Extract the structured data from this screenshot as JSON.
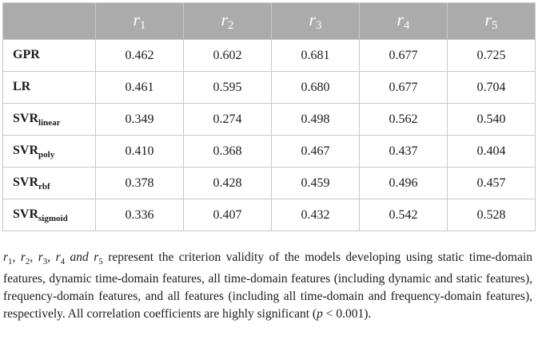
{
  "table": {
    "columns": [
      {
        "base": "r",
        "sub": "1"
      },
      {
        "base": "r",
        "sub": "2"
      },
      {
        "base": "r",
        "sub": "3"
      },
      {
        "base": "r",
        "sub": "4"
      },
      {
        "base": "r",
        "sub": "5"
      }
    ],
    "rows": [
      {
        "model": "GPR",
        "sub": "",
        "values": [
          "0.462",
          "0.602",
          "0.681",
          "0.677",
          "0.725"
        ]
      },
      {
        "model": "LR",
        "sub": "",
        "values": [
          "0.461",
          "0.595",
          "0.680",
          "0.677",
          "0.704"
        ]
      },
      {
        "model": "SVR",
        "sub": "linear",
        "values": [
          "0.349",
          "0.274",
          "0.498",
          "0.562",
          "0.540"
        ]
      },
      {
        "model": "SVR",
        "sub": "poly",
        "values": [
          "0.410",
          "0.368",
          "0.467",
          "0.437",
          "0.404"
        ]
      },
      {
        "model": "SVR",
        "sub": "rbf",
        "values": [
          "0.378",
          "0.428",
          "0.459",
          "0.496",
          "0.457"
        ]
      },
      {
        "model": "SVR",
        "sub": "sigmoid",
        "values": [
          "0.336",
          "0.407",
          "0.432",
          "0.542",
          "0.528"
        ]
      }
    ]
  },
  "footnote": {
    "vars": [
      {
        "base": "r",
        "sub": "1",
        "after": ", "
      },
      {
        "base": "r",
        "sub": "2",
        "after": ", "
      },
      {
        "base": "r",
        "sub": "3",
        "after": ", "
      },
      {
        "base": "r",
        "sub": "4",
        "after": ""
      },
      {
        "base": "r",
        "sub": "5",
        "after": ""
      }
    ],
    "and": " and ",
    "text": " represent the criterion validity of the models developing using static time-domain features, dynamic time-domain features, all time-domain features (including dynamic and static features), frequency-domain features, and all features (including all time-domain and frequency-domain features), respectively. All correlation coefficients are highly significant (",
    "p": "p",
    "comparison": " < 0.001)."
  }
}
